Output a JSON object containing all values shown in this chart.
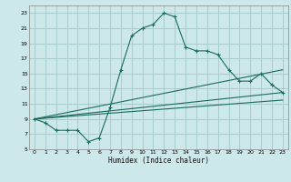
{
  "xlabel": "Humidex (Indice chaleur)",
  "bg_color": "#cce8e8",
  "grid_color": "#aacccc",
  "line_color": "#1a6b5a",
  "xlim": [
    -0.5,
    23.5
  ],
  "ylim": [
    5,
    24
  ],
  "xticks": [
    0,
    1,
    2,
    3,
    4,
    5,
    6,
    7,
    8,
    9,
    10,
    11,
    12,
    13,
    14,
    15,
    16,
    17,
    18,
    19,
    20,
    21,
    22,
    23
  ],
  "yticks": [
    5,
    7,
    9,
    11,
    13,
    15,
    17,
    19,
    21,
    23
  ],
  "line1_x": [
    0,
    1,
    2,
    3,
    4,
    5,
    6,
    7,
    8,
    9,
    10,
    11,
    12,
    13,
    14,
    15,
    16,
    17,
    18,
    19,
    20,
    21,
    22,
    23
  ],
  "line1_y": [
    9.0,
    8.5,
    7.5,
    7.5,
    7.5,
    6.0,
    6.5,
    10.5,
    15.5,
    20.0,
    21.0,
    21.5,
    23.0,
    22.5,
    18.5,
    18.0,
    18.0,
    17.5,
    15.5,
    14.0,
    14.0,
    15.0,
    13.5,
    12.5
  ],
  "line2_x": [
    0,
    23
  ],
  "line2_y": [
    9.0,
    12.5
  ],
  "line3_x": [
    0,
    23
  ],
  "line3_y": [
    9.0,
    11.5
  ],
  "line4_x": [
    0,
    23
  ],
  "line4_y": [
    9.0,
    15.5
  ]
}
